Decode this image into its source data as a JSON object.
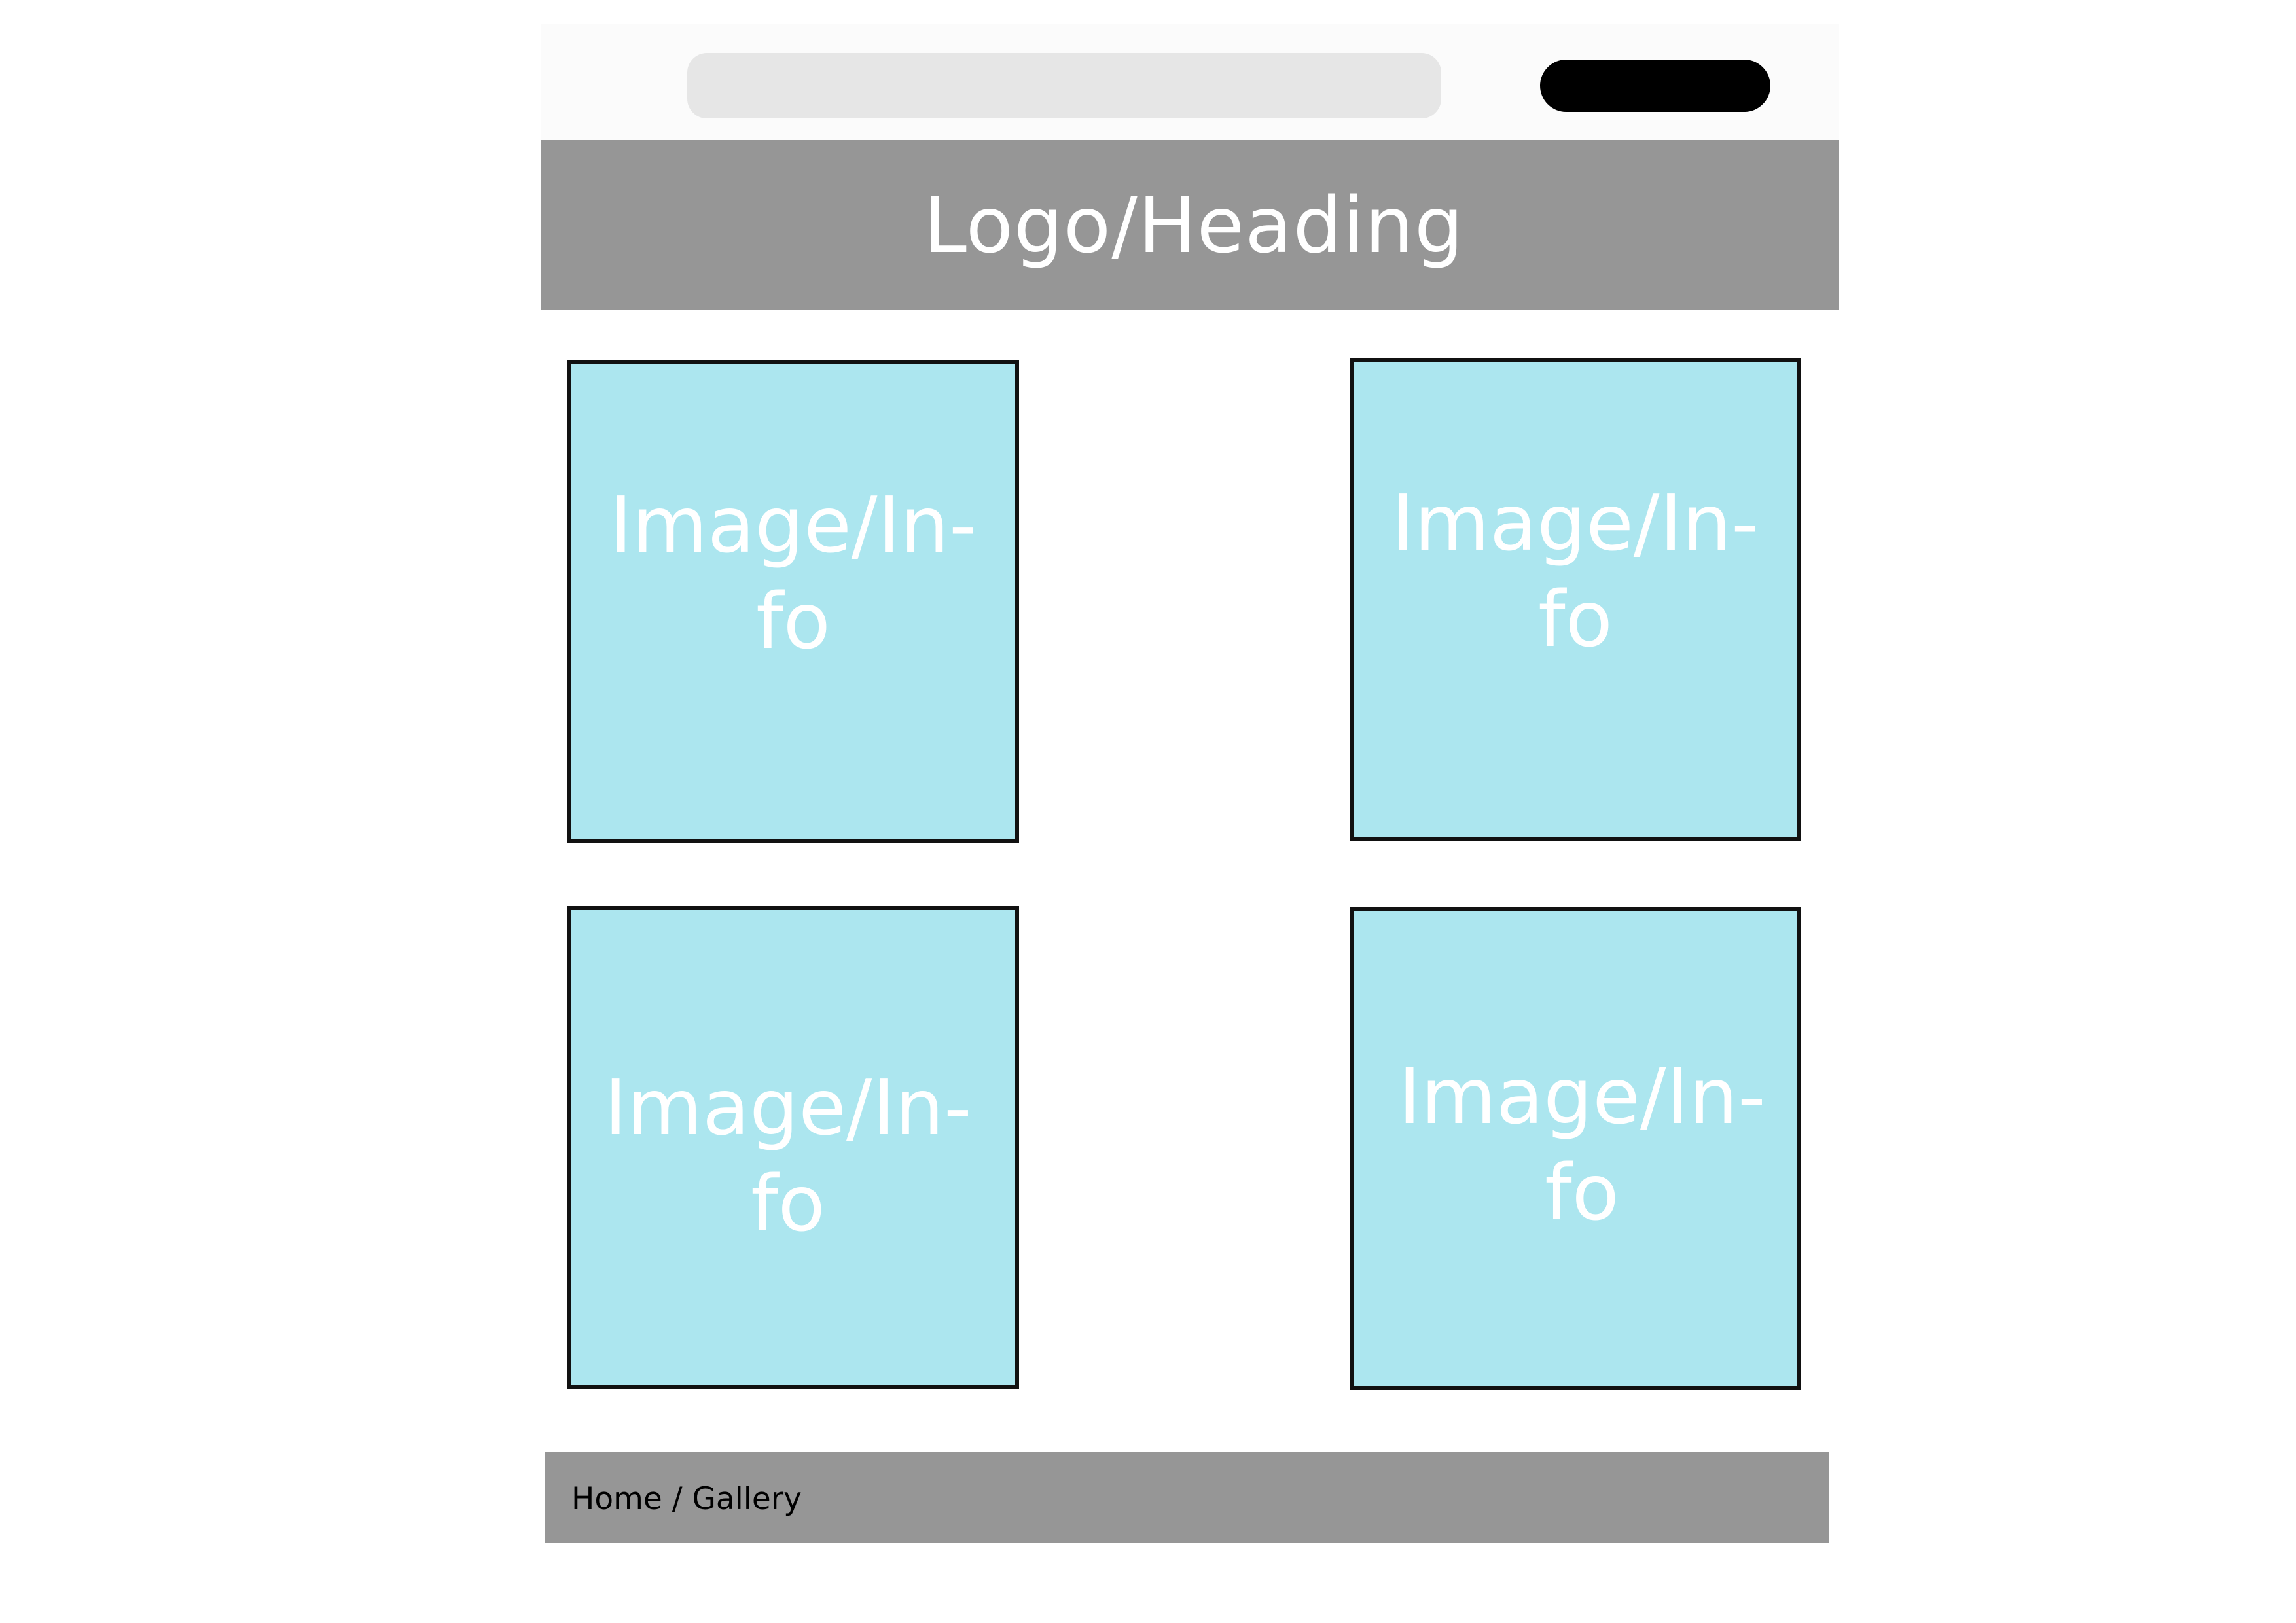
{
  "header": {
    "title": "Logo/Heading"
  },
  "gallery": {
    "cards": [
      {
        "label": "Image/In-\nfo"
      },
      {
        "label": "Image/In-\nfo"
      },
      {
        "label": "Image/In-\nfo"
      },
      {
        "label": "Image/In-\nfo"
      }
    ]
  },
  "footer": {
    "breadcrumb": "Home / Gallery"
  },
  "colors": {
    "bar_gray": "#969696",
    "card_fill": "#ace6ef",
    "search_bg": "#e6e6e6",
    "button_bg": "#000000"
  }
}
